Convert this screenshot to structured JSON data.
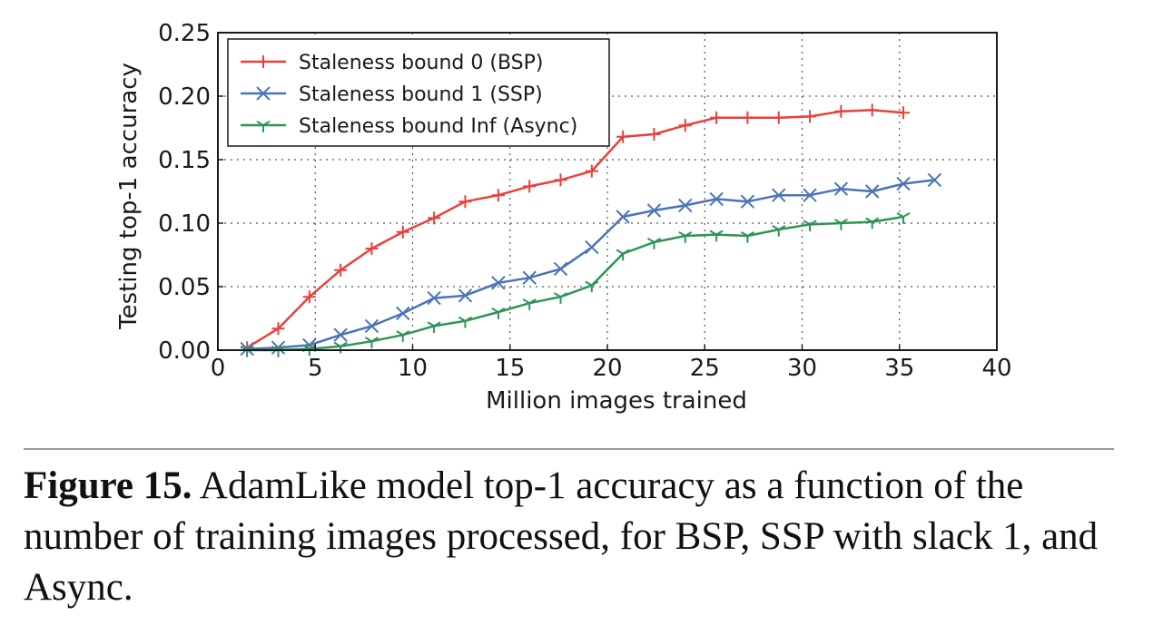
{
  "chart_data": {
    "type": "line",
    "xlabel": "Million images trained",
    "ylabel": "Testing top-1 accuracy",
    "xlim": [
      0,
      40
    ],
    "ylim": [
      0,
      0.25
    ],
    "xticks": [
      "0",
      "5",
      "10",
      "15",
      "20",
      "25",
      "30",
      "35",
      "40"
    ],
    "yticks": [
      "0.00",
      "0.05",
      "0.10",
      "0.15",
      "0.20",
      "0.25"
    ],
    "grid": true,
    "legend_position": "top-left",
    "series": [
      {
        "name": "Staleness bound 0 (BSP)",
        "color": "#e8413c",
        "marker": "plus",
        "x": [
          1.5,
          3.1,
          4.7,
          6.3,
          7.9,
          9.5,
          11.1,
          12.7,
          14.4,
          16.0,
          17.6,
          19.2,
          20.8,
          22.4,
          24.0,
          25.6,
          27.2,
          28.8,
          30.4,
          32.0,
          33.6,
          35.2
        ],
        "y": [
          0.002,
          0.017,
          0.042,
          0.063,
          0.08,
          0.093,
          0.104,
          0.117,
          0.122,
          0.129,
          0.134,
          0.141,
          0.168,
          0.17,
          0.177,
          0.183,
          0.183,
          0.183,
          0.184,
          0.188,
          0.189,
          0.187
        ]
      },
      {
        "name": "Staleness bound 1 (SSP)",
        "color": "#4a74b5",
        "marker": "x",
        "x": [
          1.5,
          3.1,
          4.7,
          6.3,
          7.9,
          9.5,
          11.1,
          12.7,
          14.4,
          16.0,
          17.6,
          19.2,
          20.8,
          22.4,
          24.0,
          25.6,
          27.2,
          28.8,
          30.4,
          32.0,
          33.6,
          35.2,
          36.8
        ],
        "y": [
          0.001,
          0.002,
          0.004,
          0.012,
          0.019,
          0.029,
          0.041,
          0.043,
          0.053,
          0.057,
          0.064,
          0.081,
          0.105,
          0.11,
          0.114,
          0.119,
          0.117,
          0.122,
          0.122,
          0.127,
          0.125,
          0.131,
          0.134
        ]
      },
      {
        "name": "Staleness bound Inf (Async)",
        "color": "#2e9456",
        "marker": "tri-down",
        "x": [
          1.5,
          3.1,
          4.7,
          6.3,
          7.9,
          9.5,
          11.1,
          12.7,
          14.4,
          16.0,
          17.6,
          19.2,
          20.8,
          22.4,
          24.0,
          25.6,
          27.2,
          28.8,
          30.4,
          32.0,
          33.6,
          35.2
        ],
        "y": [
          0.0,
          0.0,
          0.001,
          0.003,
          0.007,
          0.012,
          0.019,
          0.023,
          0.03,
          0.037,
          0.042,
          0.051,
          0.076,
          0.085,
          0.09,
          0.091,
          0.09,
          0.095,
          0.099,
          0.1,
          0.101,
          0.105
        ]
      }
    ]
  },
  "caption": {
    "label": "Figure 15.",
    "text": "AdamLike model top-1 accuracy as a function of the number of training images processed, for BSP, SSP with slack 1, and Async."
  }
}
